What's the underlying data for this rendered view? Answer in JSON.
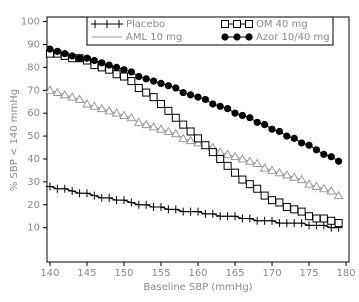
{
  "chart_data": {
    "type": "line",
    "xlabel": "Baseline SBP (mmHg)",
    "ylabel": "% SBP < 140 mmHg",
    "x": [
      140,
      141,
      142,
      143,
      144,
      145,
      146,
      147,
      148,
      149,
      150,
      151,
      152,
      153,
      154,
      155,
      156,
      157,
      158,
      159,
      160,
      161,
      162,
      163,
      164,
      165,
      166,
      167,
      168,
      169,
      170,
      171,
      172,
      173,
      174,
      175,
      176,
      177,
      178,
      179
    ],
    "xlim": [
      139.6,
      180.4
    ],
    "xticks": [
      140,
      145,
      150,
      155,
      160,
      165,
      170,
      175,
      180
    ],
    "ylim": [
      -5,
      102
    ],
    "yticks": [
      10,
      20,
      30,
      40,
      50,
      60,
      70,
      80,
      90,
      100
    ],
    "grid": false,
    "legend": "top",
    "series": [
      {
        "name": "Placebo",
        "color": "#000000",
        "marker": "plus",
        "values": [
          28,
          27,
          27,
          26,
          25,
          25,
          24,
          23,
          23,
          22,
          22,
          21,
          20,
          20,
          19,
          19,
          18,
          18,
          17,
          17,
          17,
          16,
          16,
          15,
          15,
          15,
          14,
          14,
          13,
          13,
          13,
          12,
          12,
          12,
          12,
          11,
          11,
          11,
          10,
          10
        ]
      },
      {
        "name": "AML 10 mg",
        "color": "#9a9a9a",
        "marker": "triangle",
        "values": [
          70,
          69,
          68,
          67,
          66,
          64,
          63,
          62,
          61,
          60,
          59,
          58,
          56,
          55,
          54,
          53,
          52,
          51,
          49,
          48,
          47,
          46,
          45,
          43,
          42,
          41,
          40,
          39,
          38,
          36,
          35,
          34,
          33,
          32,
          31,
          29,
          28,
          27,
          26,
          24
        ]
      },
      {
        "name": "OM 40 mg",
        "color": "#000000",
        "marker": "square",
        "values": [
          86,
          86,
          85,
          84,
          84,
          83,
          81,
          80,
          79,
          77,
          76,
          74,
          71,
          69,
          67,
          64,
          61,
          58,
          55,
          52,
          49,
          46,
          43,
          40,
          37,
          34,
          31,
          29,
          27,
          24,
          22,
          21,
          19,
          18,
          17,
          15,
          14,
          14,
          13,
          12
        ]
      },
      {
        "name": "Azor 10/40 mg",
        "color": "#000000",
        "marker": "circle",
        "values": [
          88,
          87,
          86,
          85,
          84,
          84,
          83,
          82,
          81,
          80,
          79,
          78,
          76,
          75,
          74,
          73,
          72,
          71,
          69,
          68,
          67,
          66,
          64,
          63,
          62,
          60,
          59,
          58,
          56,
          55,
          53,
          52,
          50,
          49,
          47,
          46,
          44,
          42,
          41,
          39
        ]
      }
    ]
  }
}
